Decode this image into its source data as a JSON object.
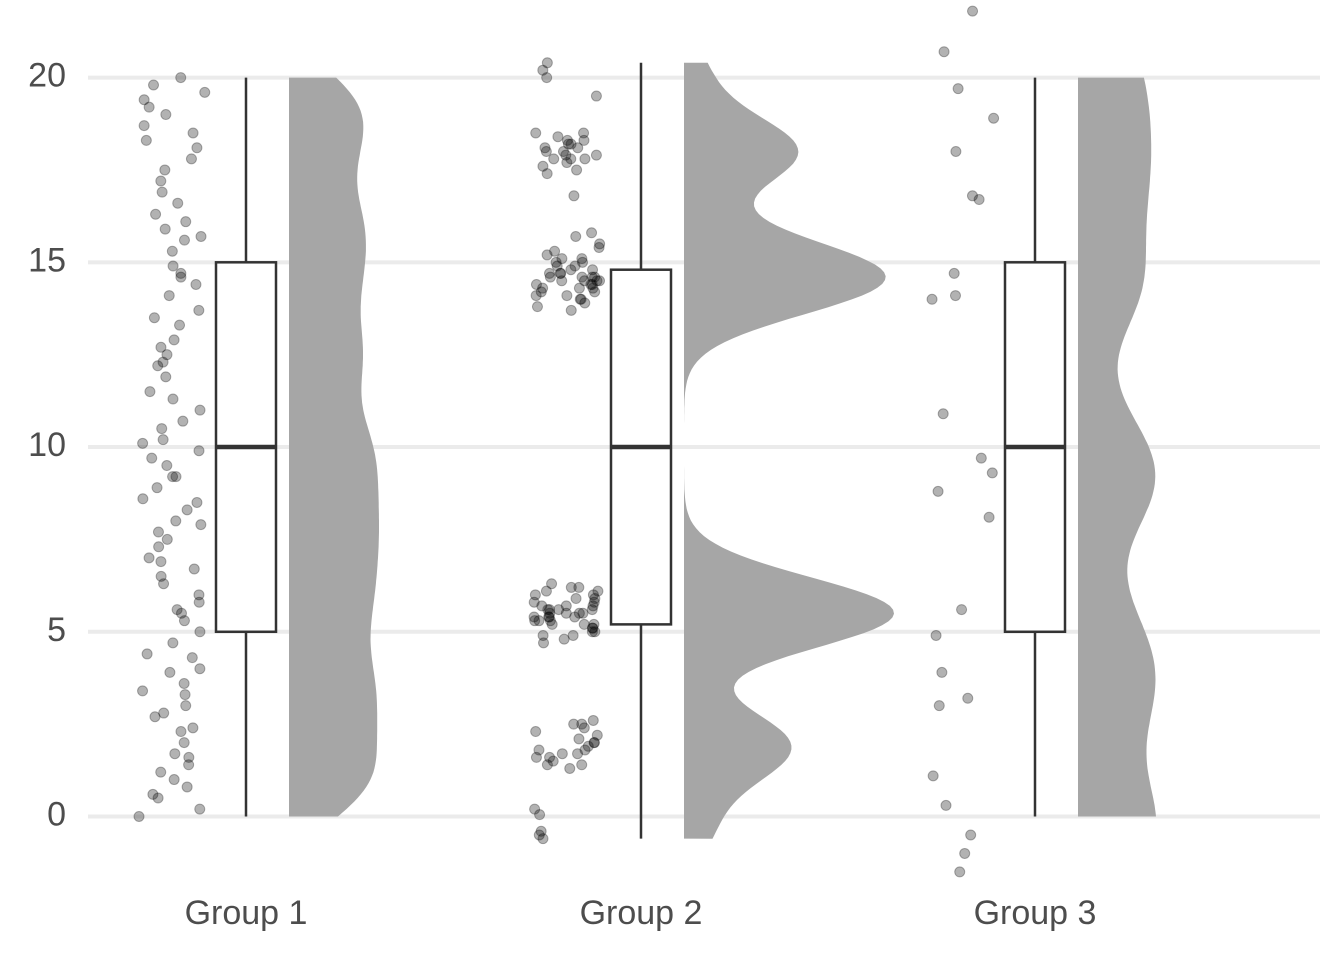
{
  "chart_data": {
    "type": "raincloud",
    "ylim": [
      -1.8,
      22.1
    ],
    "yticks": [
      0,
      5,
      10,
      15,
      20
    ],
    "grid": true,
    "point_color": "#000000",
    "violin_color": "#a6a6a6",
    "box_color": "#333333",
    "groups": [
      {
        "name": "Group 1",
        "box": {
          "whisker_low": 0,
          "q1": 5,
          "median": 10,
          "q3": 15,
          "whisker_high": 20
        },
        "values": [
          0.0,
          0.2,
          0.5,
          0.6,
          0.8,
          1.0,
          1.2,
          1.4,
          1.6,
          1.7,
          2.0,
          2.3,
          2.4,
          2.7,
          2.8,
          3.0,
          3.3,
          3.4,
          3.6,
          3.9,
          4.0,
          4.3,
          4.4,
          4.7,
          5.0,
          5.3,
          5.5,
          5.6,
          5.8,
          6.0,
          6.3,
          6.5,
          6.7,
          6.9,
          7.0,
          7.3,
          7.5,
          7.7,
          7.9,
          8.0,
          8.3,
          8.5,
          8.6,
          8.9,
          9.2,
          9.2,
          9.5,
          9.7,
          9.9,
          10.1,
          10.2,
          10.5,
          10.7,
          11.0,
          11.3,
          11.5,
          11.9,
          12.2,
          12.3,
          12.5,
          12.7,
          12.9,
          13.3,
          13.5,
          13.7,
          14.1,
          14.4,
          14.6,
          14.7,
          14.9,
          15.3,
          15.6,
          15.7,
          15.9,
          16.1,
          16.3,
          16.6,
          16.9,
          17.2,
          17.5,
          17.8,
          18.1,
          18.3,
          18.5,
          18.7,
          19.0,
          19.2,
          19.4,
          19.6,
          19.8,
          20.0
        ]
      },
      {
        "name": "Group 2",
        "box": {
          "whisker_low": -0.6,
          "q1": 5.2,
          "median": 10,
          "q3": 14.8,
          "whisker_high": 20.4
        },
        "values": [
          4.7,
          4.8,
          4.9,
          4.9,
          5.0,
          5.0,
          5.1,
          5.1,
          5.2,
          5.2,
          5.2,
          5.3,
          5.3,
          5.3,
          5.4,
          5.4,
          5.4,
          5.5,
          5.5,
          5.5,
          5.5,
          5.6,
          5.6,
          5.6,
          5.7,
          5.7,
          5.7,
          5.8,
          5.8,
          5.9,
          5.9,
          6.0,
          6.0,
          6.1,
          6.1,
          6.2,
          6.2,
          6.3,
          5.4,
          5.6,
          13.7,
          13.8,
          13.9,
          14.0,
          14.0,
          14.1,
          14.1,
          14.2,
          14.2,
          14.3,
          14.3,
          14.3,
          14.4,
          14.4,
          14.4,
          14.5,
          14.5,
          14.5,
          14.5,
          14.6,
          14.6,
          14.6,
          14.7,
          14.7,
          14.7,
          14.8,
          14.8,
          14.9,
          14.9,
          15.0,
          15.0,
          15.1,
          15.1,
          15.2,
          15.3,
          15.4,
          15.5,
          15.7,
          15.8,
          14.6,
          17.4,
          17.5,
          17.6,
          17.7,
          17.8,
          17.8,
          17.9,
          17.9,
          18.0,
          18.0,
          18.1,
          18.1,
          18.2,
          18.2,
          18.3,
          18.3,
          18.4,
          18.5,
          18.5,
          17.8,
          1.3,
          1.4,
          1.4,
          1.5,
          1.6,
          1.7,
          1.7,
          1.8,
          1.8,
          1.9,
          2.0,
          2.0,
          2.1,
          2.2,
          2.3,
          2.4,
          2.5,
          2.5,
          2.6,
          1.6,
          -0.6,
          -0.5,
          -0.4,
          0.05,
          0.2,
          16.8,
          19.5,
          20.0,
          20.2,
          20.4
        ]
      },
      {
        "name": "Group 3",
        "box": {
          "whisker_low": 0,
          "q1": 5,
          "median": 10,
          "q3": 15,
          "whisker_high": 20
        },
        "values": [
          21.8,
          20.7,
          19.7,
          18.9,
          18.0,
          16.8,
          16.7,
          14.7,
          14.1,
          14.0,
          10.9,
          9.7,
          9.3,
          8.8,
          8.1,
          5.6,
          4.9,
          3.9,
          3.2,
          3.0,
          1.1,
          0.3,
          -0.5,
          -1.0,
          -1.5
        ]
      }
    ]
  }
}
